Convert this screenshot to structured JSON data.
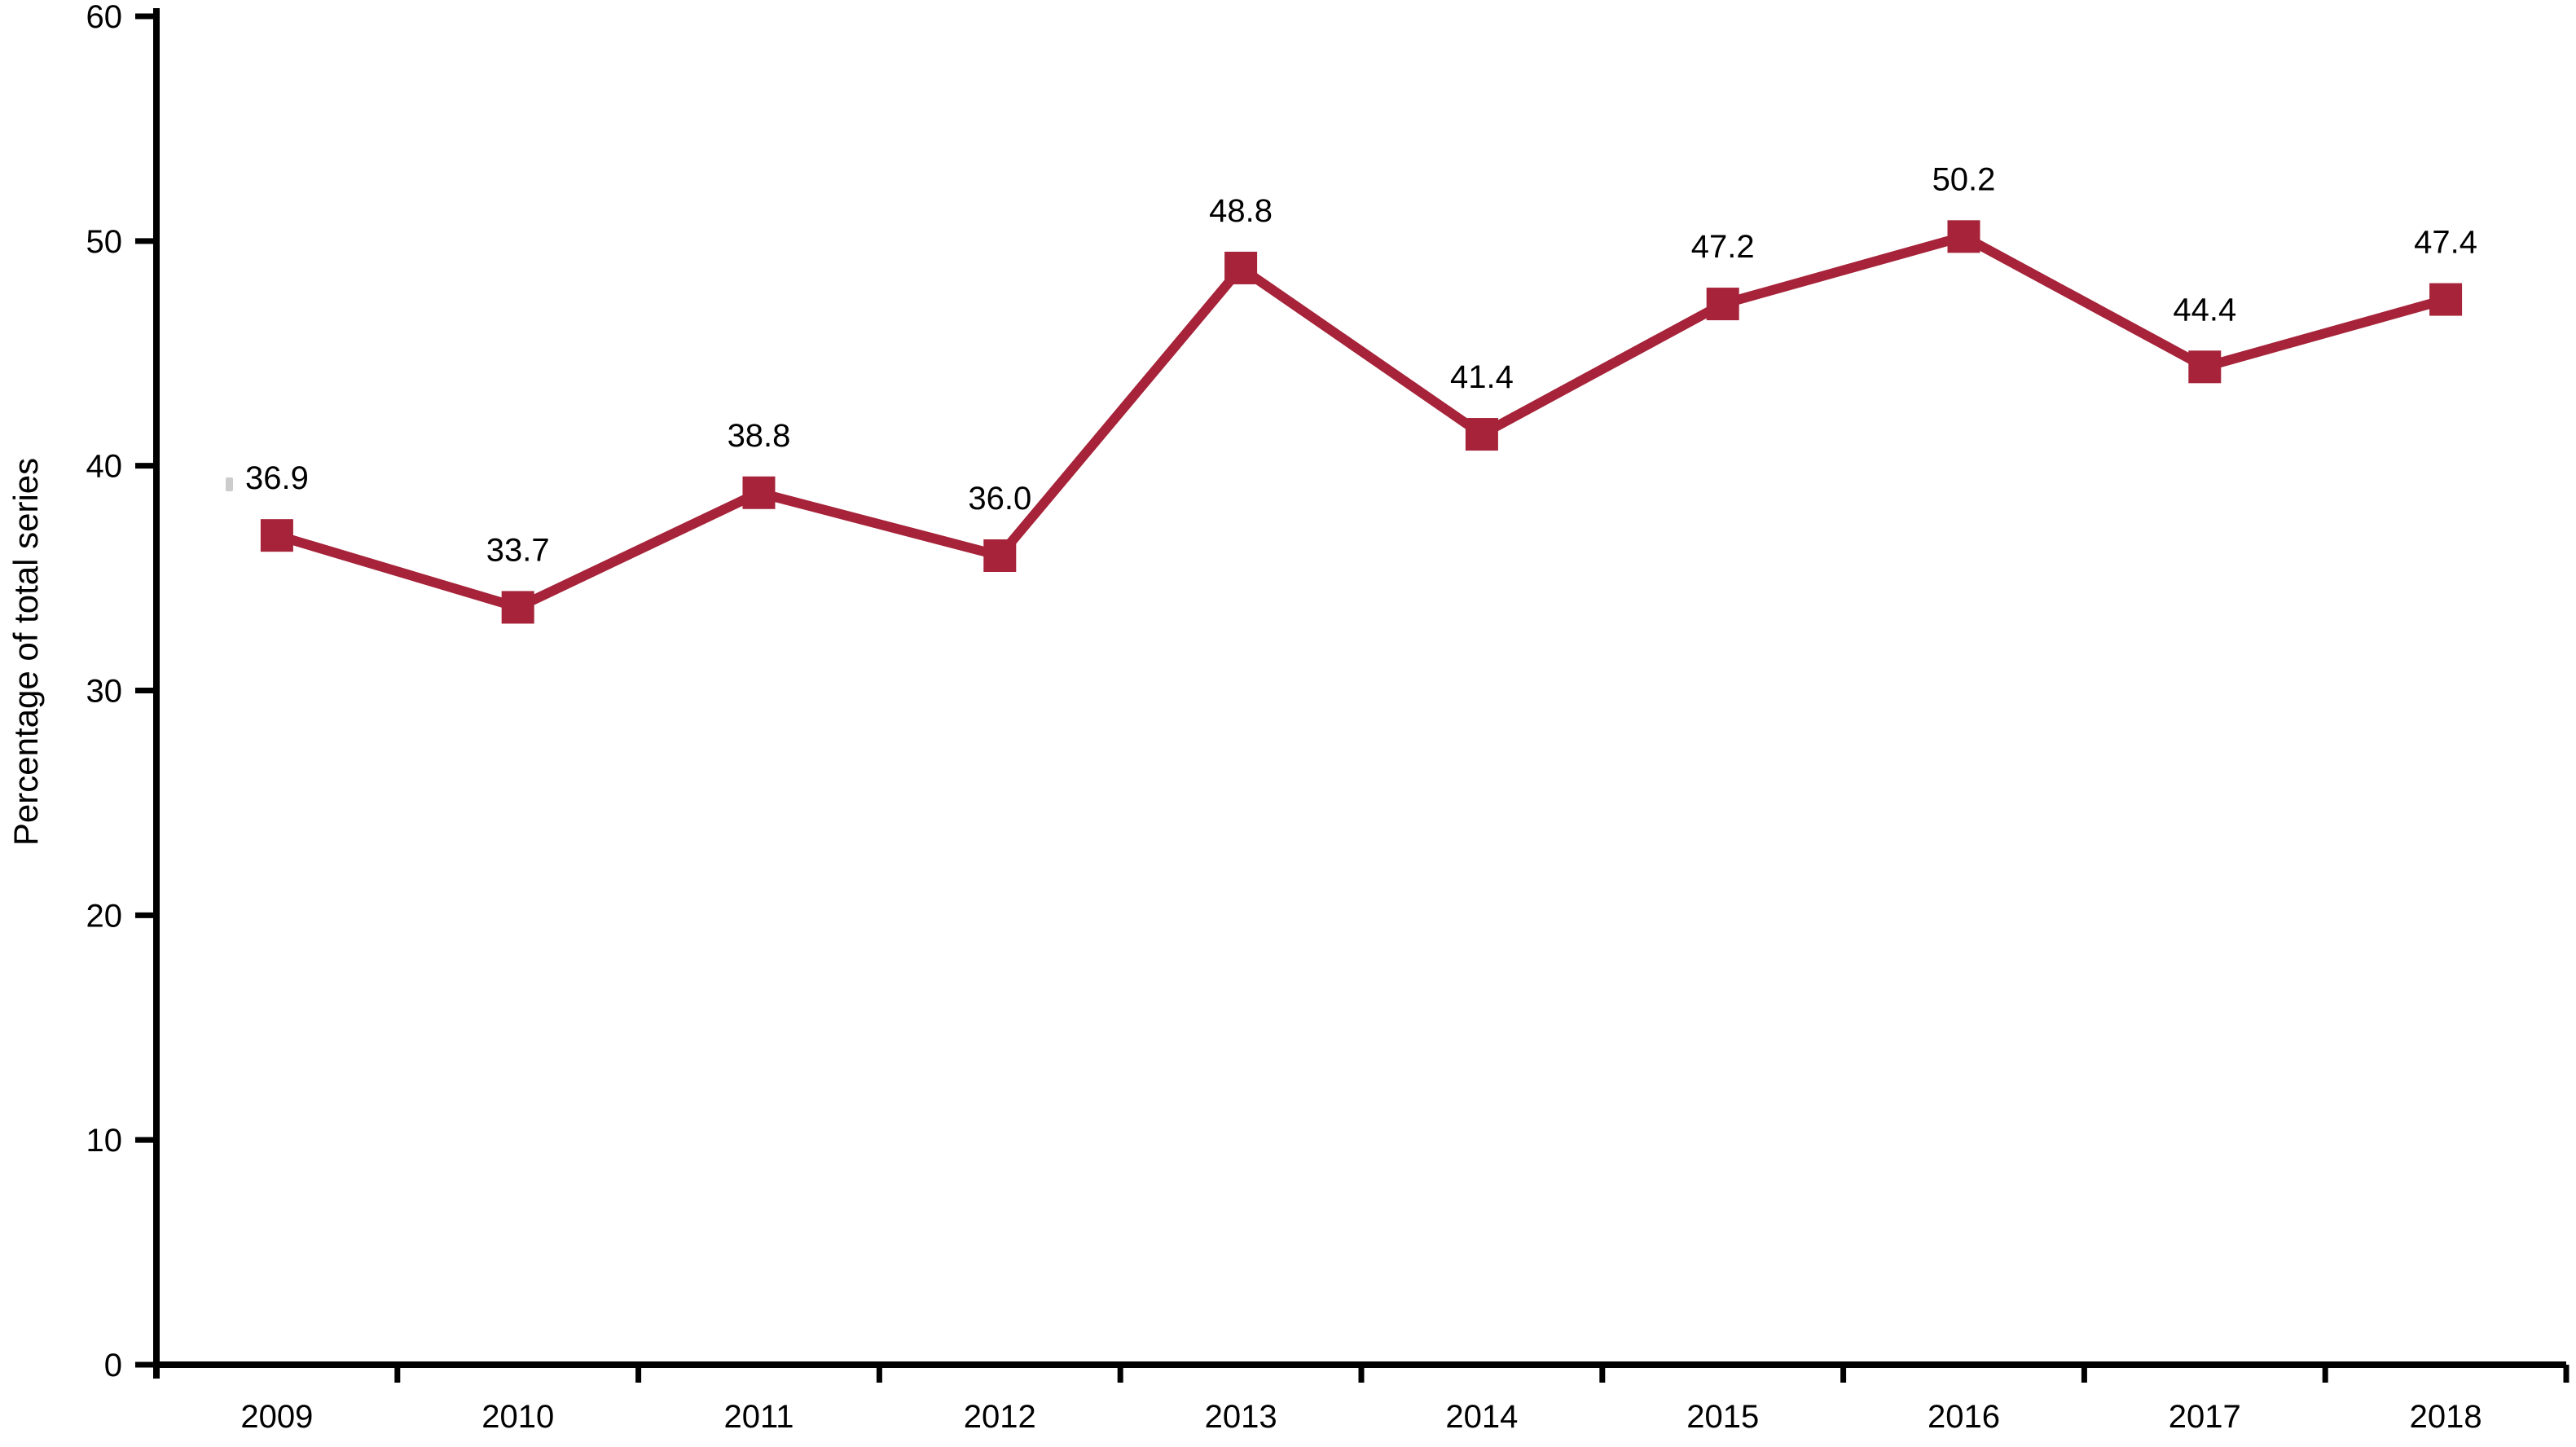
{
  "figure": {
    "background": "#ffffff",
    "accent_color": "#A62339",
    "axis_color": "#000000",
    "text_color": "#000000"
  },
  "chart_data": {
    "type": "line",
    "title": "",
    "xlabel": "",
    "ylabel": "Percentage of total series",
    "categories": [
      "2009",
      "2010",
      "2011",
      "2012",
      "2013",
      "2014",
      "2015",
      "2016",
      "2017",
      "2018"
    ],
    "series": [
      {
        "name": "Percentage of total series",
        "values": [
          36.9,
          33.7,
          38.8,
          36.0,
          48.8,
          41.4,
          47.2,
          50.2,
          44.4,
          47.4
        ],
        "data_labels": [
          "36.9",
          "33.7",
          "38.8",
          "36.0",
          "48.8",
          "41.4",
          "47.2",
          "50.2",
          "44.4",
          "47.4"
        ],
        "color": "#A62339",
        "marker": "square"
      }
    ],
    "ylim": [
      0,
      60
    ],
    "yticks": [
      0,
      10,
      20,
      30,
      40,
      50,
      60
    ],
    "grid": false,
    "legend_position": "none"
  }
}
